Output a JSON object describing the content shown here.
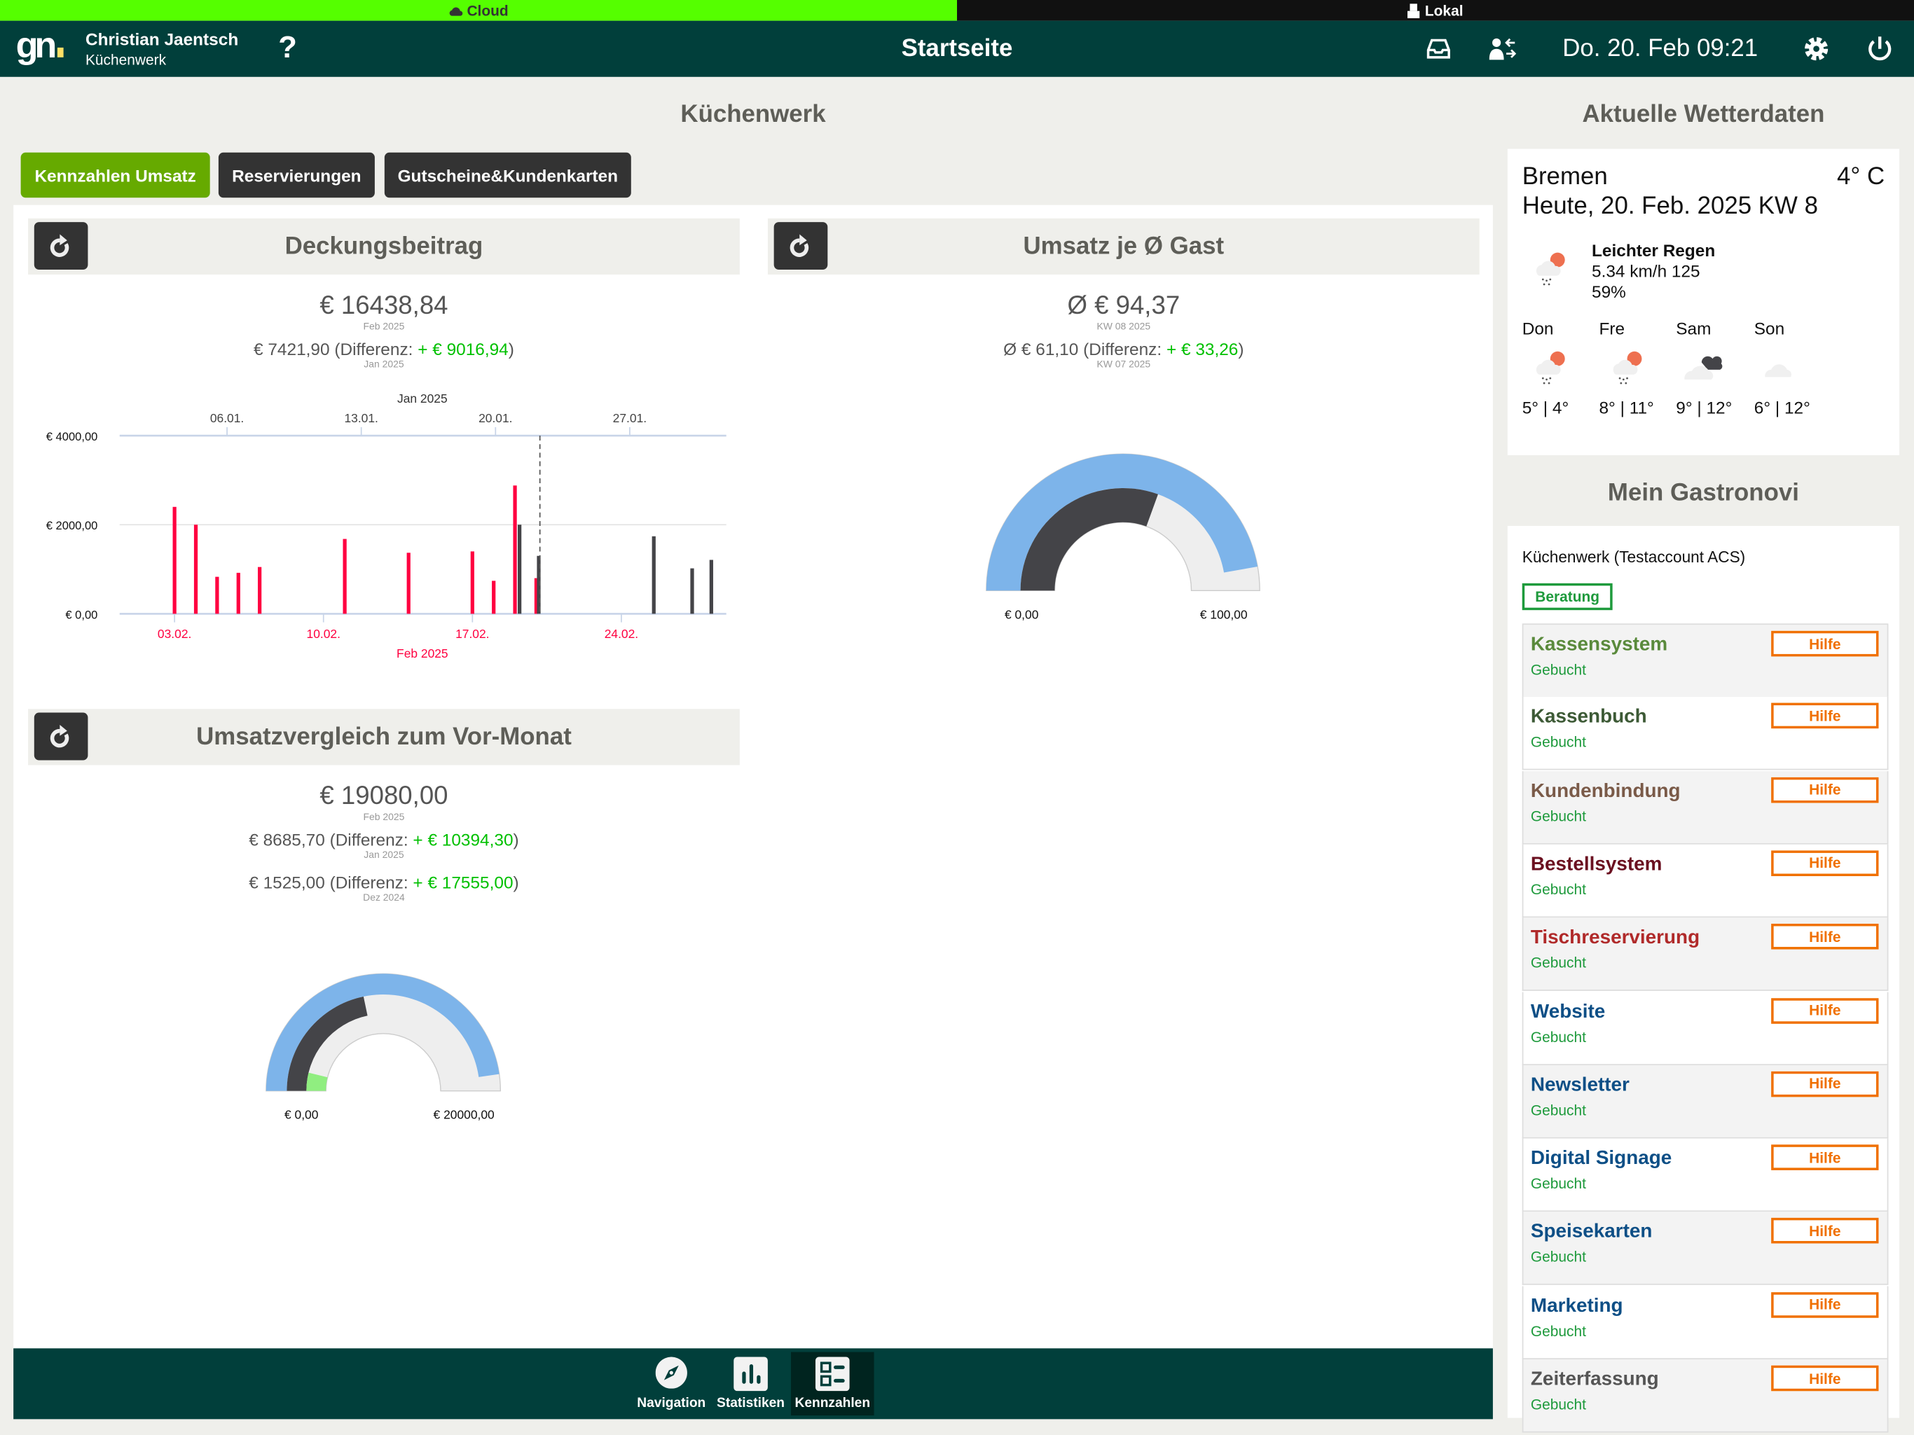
{
  "topbar": {
    "cloud_label": "Cloud",
    "local_label": "Lokal",
    "cloud_color": "#55ff00"
  },
  "header": {
    "user_name": "Christian Jaentsch",
    "location": "Küchenwerk",
    "help": "?",
    "title": "Startseite",
    "datetime": "Do. 20. Feb 09:21"
  },
  "main": {
    "title": "Küchenwerk",
    "tabs": [
      {
        "label": "Kennzahlen Umsatz",
        "active": true
      },
      {
        "label": "Reservierungen"
      },
      {
        "label": "Gutscheine&Kundenkarten"
      }
    ]
  },
  "cards": {
    "deckung": {
      "title": "Deckungsbeitrag",
      "value": "€ 16438,84",
      "value_period": "Feb 2025",
      "prev_value": "€ 7421,90",
      "diff_label": "(Differenz: ",
      "diff": "+ € 9016,94",
      "close": ")",
      "prev_period": "Jan 2025"
    },
    "gast": {
      "title": "Umsatz je Ø Gast",
      "value": "Ø € 94,37",
      "value_period": "KW 08 2025",
      "prev_value": "Ø € 61,10",
      "diff_label": "(Differenz: ",
      "diff": "+ € 33,26",
      "close": ")",
      "prev_period": "KW 07 2025",
      "gauge_min": "€ 0,00",
      "gauge_max": "€ 100,00"
    },
    "vormonat": {
      "title": "Umsatzvergleich zum Vor-Monat",
      "value": "€ 19080,00",
      "value_period": "Feb 2025",
      "rows": [
        {
          "value": "€ 8685,70",
          "diff_label": "(Differenz: ",
          "diff": "+ € 10394,30",
          "close": ")",
          "period": "Jan 2025"
        },
        {
          "value": "€ 1525,00",
          "diff_label": "(Differenz: ",
          "diff": "+ € 17555,00",
          "close": ")",
          "period": "Dez 2024"
        }
      ],
      "gauge_min": "€ 0,00",
      "gauge_max": "€ 20000,00"
    }
  },
  "chart_data": [
    {
      "type": "bar",
      "title": "Deckungsbeitrag",
      "ylim": [
        0,
        4000
      ],
      "yticks": [
        "€ 0,00",
        "€ 2000,00",
        "€ 4000,00"
      ],
      "ytick_values": [
        0,
        2000,
        4000
      ],
      "grid": true,
      "x_top_label": "Jan 2025",
      "x_top_ticks": [
        "06.01.",
        "13.01.",
        "20.01.",
        "27.01."
      ],
      "x_bottom_label": "Feb 2025",
      "x_bottom_ticks": [
        "03.02.",
        "10.02.",
        "17.02.",
        "24.02."
      ],
      "marker_line": "2025-02-20",
      "series": [
        {
          "name": "Feb 2025",
          "color": "#ff0040",
          "x": [
            "2025-02-03",
            "2025-02-04",
            "2025-02-05",
            "2025-02-06",
            "2025-02-07",
            "2025-02-11",
            "2025-02-14",
            "2025-02-17",
            "2025-02-18",
            "2025-02-19",
            "2025-02-20"
          ],
          "values": [
            2400,
            2000,
            830,
            920,
            1050,
            1680,
            1370,
            1400,
            740,
            2880,
            800
          ]
        },
        {
          "name": "Jan 2025",
          "color": "#444448",
          "x": [
            "2025-01-21",
            "2025-01-22",
            "2025-01-28",
            "2025-01-30",
            "2025-01-31"
          ],
          "values": [
            2000,
            1300,
            1740,
            1020,
            1210
          ]
        }
      ]
    },
    {
      "type": "gauge",
      "title": "Umsatz je Ø Gast",
      "range": [
        0,
        100
      ],
      "series": [
        {
          "ring": "outer",
          "value": 94.37,
          "color": "#7db4ea"
        },
        {
          "ring": "inner",
          "value": 61.1,
          "color": "#444448"
        }
      ]
    },
    {
      "type": "gauge",
      "title": "Umsatzvergleich zum Vor-Monat",
      "range": [
        0,
        20000
      ],
      "series": [
        {
          "ring": "outer",
          "value": 19080,
          "color": "#7db4ea"
        },
        {
          "ring": "middle",
          "value": 8685.7,
          "color": "#444448"
        },
        {
          "ring": "inner",
          "value": 1525,
          "color": "#90ee80"
        }
      ]
    }
  ],
  "weather": {
    "title": "Aktuelle Wetterdaten",
    "city": "Bremen",
    "temp": "4° C",
    "date": "Heute, 20. Feb. 2025 KW 8",
    "condition": "Leichter Regen",
    "wind": "5.34 km/h 125",
    "humidity": "59%",
    "icon": "cloud-sun-rain-icon",
    "forecast": [
      {
        "day": "Don",
        "icon": "cloud-sun-rain-icon",
        "temps": "5° | 4°"
      },
      {
        "day": "Fre",
        "icon": "cloud-sun-rain-icon",
        "temps": "8° | 11°"
      },
      {
        "day": "Sam",
        "icon": "cloud-dark-icon",
        "temps": "9° | 12°"
      },
      {
        "day": "Son",
        "icon": "cloud-icon",
        "temps": "6° | 12°"
      }
    ]
  },
  "gastronovi": {
    "title": "Mein Gastronovi",
    "account": "Küchenwerk (Testaccount ACS)",
    "consult_button": "Beratung",
    "help_label": "Hilfe",
    "services": [
      {
        "name": "Kassensystem",
        "status": "Gebucht",
        "color": "#5a8a3c"
      },
      {
        "name": "Kassenbuch",
        "status": "Gebucht",
        "color": "#3d5a36"
      },
      {
        "name": "Kundenbindung",
        "status": "Gebucht",
        "color": "#7a5a48"
      },
      {
        "name": "Bestellsystem",
        "status": "Gebucht",
        "color": "#6b1020"
      },
      {
        "name": "Tischreservierung",
        "status": "Gebucht",
        "color": "#b02a2a"
      },
      {
        "name": "Website",
        "status": "Gebucht",
        "color": "#0e4f86"
      },
      {
        "name": "Newsletter",
        "status": "Gebucht",
        "color": "#0e4f86"
      },
      {
        "name": "Digital Signage",
        "status": "Gebucht",
        "color": "#0e4f86"
      },
      {
        "name": "Speisekarten",
        "status": "Gebucht",
        "color": "#0e4f86"
      },
      {
        "name": "Marketing",
        "status": "Gebucht",
        "color": "#0e4f86"
      },
      {
        "name": "Zeiterfassung",
        "status": "Gebucht",
        "color": "#555555"
      }
    ]
  },
  "bottom_nav": [
    {
      "label": "Navigation",
      "icon": "compass-icon"
    },
    {
      "label": "Statistiken",
      "icon": "bar-chart-icon"
    },
    {
      "label": "Kennzahlen",
      "icon": "dashboard-icon",
      "active": true
    }
  ]
}
